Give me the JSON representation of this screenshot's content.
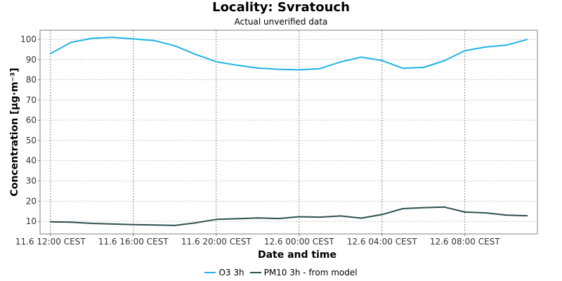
{
  "chart_data": {
    "type": "line",
    "title": "Locality: Svratouch",
    "subtitle": "Actual unverified data",
    "xlabel": "Date and time",
    "ylabel": "Concentration [µg·m⁻³]",
    "ylim": [
      3.8,
      104.5
    ],
    "yticks": [
      10,
      20,
      30,
      40,
      50,
      60,
      70,
      80,
      90,
      100
    ],
    "xlim": [
      "2024-06-11T11:30",
      "2024-06-12T11:30"
    ],
    "xticks": [
      {
        "t": "2024-06-11T12:00",
        "label": "11.6 12:00 CEST"
      },
      {
        "t": "2024-06-11T16:00",
        "label": "11.6 16:00 CEST"
      },
      {
        "t": "2024-06-11T20:00",
        "label": "11.6 20:00 CEST"
      },
      {
        "t": "2024-06-12T00:00",
        "label": "12.6 00:00 CEST"
      },
      {
        "t": "2024-06-12T04:00",
        "label": "12.6 04:00 CEST"
      },
      {
        "t": "2024-06-12T08:00",
        "label": "12.6 08:00 CEST"
      }
    ],
    "grid": true,
    "legend_position": "bottom",
    "x": [
      "2024-06-11T12:00",
      "2024-06-11T13:00",
      "2024-06-11T14:00",
      "2024-06-11T15:00",
      "2024-06-11T16:00",
      "2024-06-11T17:00",
      "2024-06-11T18:00",
      "2024-06-11T19:00",
      "2024-06-11T20:00",
      "2024-06-11T21:00",
      "2024-06-11T22:00",
      "2024-06-11T23:00",
      "2024-06-12T00:00",
      "2024-06-12T01:00",
      "2024-06-12T02:00",
      "2024-06-12T03:00",
      "2024-06-12T04:00",
      "2024-06-12T05:00",
      "2024-06-12T06:00",
      "2024-06-12T07:00",
      "2024-06-12T08:00",
      "2024-06-12T09:00",
      "2024-06-12T10:00",
      "2024-06-12T11:00"
    ],
    "series": [
      {
        "name": "O3 3h",
        "color": "#1fb3e6",
        "values": [
          92.9,
          98.5,
          100.5,
          101.0,
          100.2,
          99.4,
          96.8,
          92.6,
          88.9,
          87.2,
          85.8,
          85.2,
          84.9,
          85.5,
          88.8,
          91.2,
          89.5,
          85.7,
          86.1,
          89.4,
          94.4,
          96.2,
          97.1,
          99.9
        ]
      },
      {
        "name": "PM10 3h - from model",
        "color": "#2f4f4f",
        "values": [
          9.8,
          9.6,
          9.0,
          8.7,
          8.4,
          8.2,
          8.0,
          9.3,
          11.0,
          11.3,
          11.7,
          11.4,
          12.3,
          12.1,
          12.7,
          11.6,
          13.4,
          16.3,
          16.8,
          17.1,
          14.6,
          14.2,
          13.1,
          12.8
        ]
      }
    ]
  }
}
